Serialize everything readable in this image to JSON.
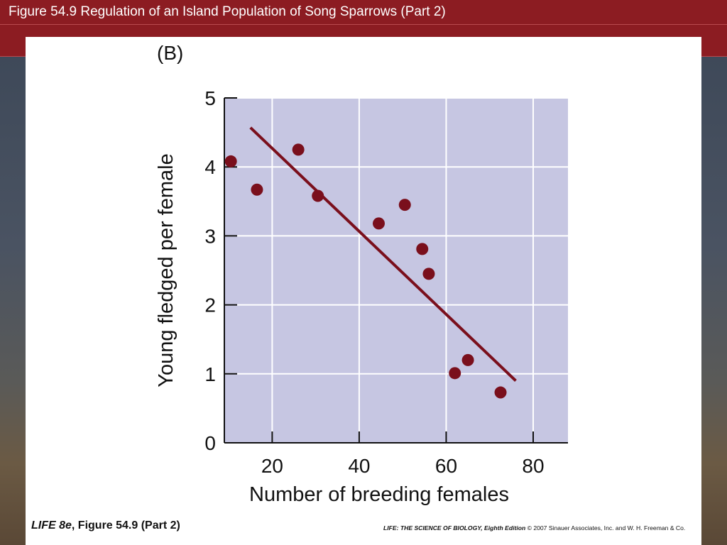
{
  "slide": {
    "title": "Figure 54.9 Regulation of an Island Population of Song Sparrows (Part 2)",
    "footer_book": "LIFE 8e",
    "footer_figure": ", Figure 54.9 (Part 2)",
    "footer_edition": "LIFE: THE SCIENCE OF BIOLOGY, Eighth Edition",
    "footer_copyright": "© 2007 Sinauer Associates, Inc. and W. H. Freeman & Co.",
    "colors": {
      "title_bar": "#8c1c22",
      "plot_bg": "#c6c6e2",
      "marker": "#7a0f1c"
    }
  },
  "chart_data": {
    "type": "scatter",
    "panel_label": "(B)",
    "xlabel": "Number of breeding females",
    "ylabel": "Young fledged per female",
    "xlim": [
      9,
      88
    ],
    "ylim": [
      0,
      5
    ],
    "xticks": [
      20,
      40,
      60,
      80
    ],
    "yticks": [
      0,
      1,
      2,
      3,
      4,
      5
    ],
    "grid": true,
    "series": [
      {
        "points": [
          {
            "x": 10.5,
            "y": 4.08
          },
          {
            "x": 16.5,
            "y": 3.67
          },
          {
            "x": 26,
            "y": 4.25
          },
          {
            "x": 30.5,
            "y": 3.58
          },
          {
            "x": 44.5,
            "y": 3.18
          },
          {
            "x": 50.5,
            "y": 3.45
          },
          {
            "x": 54.5,
            "y": 2.81
          },
          {
            "x": 56,
            "y": 2.45
          },
          {
            "x": 62,
            "y": 1.01
          },
          {
            "x": 65,
            "y": 1.2
          },
          {
            "x": 72.5,
            "y": 0.73
          }
        ]
      }
    ],
    "trendline": {
      "x1": 15,
      "y1": 4.57,
      "x2": 76,
      "y2": 0.9
    }
  }
}
